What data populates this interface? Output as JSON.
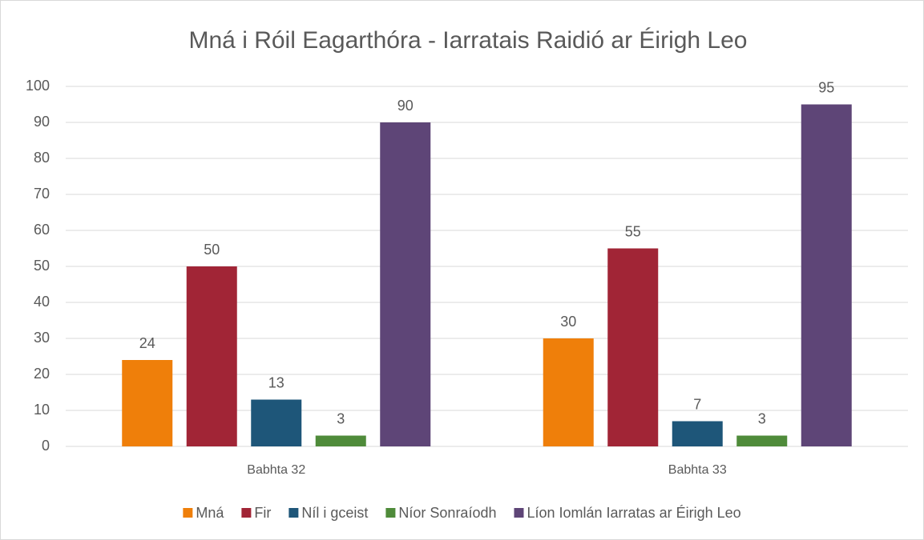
{
  "chart_data": {
    "type": "bar",
    "title": "Mná i Róil Eagarthóra - Iarratais Raidió ar Éirigh Leo",
    "categories": [
      "Babhta 32",
      "Babhta 33"
    ],
    "series": [
      {
        "name": "Mná",
        "color": "#ef7f0a",
        "values": [
          24,
          30
        ]
      },
      {
        "name": "Fir",
        "color": "#a12536",
        "values": [
          50,
          55
        ]
      },
      {
        "name": "Níl i gceist",
        "color": "#1e5679",
        "values": [
          13,
          7
        ]
      },
      {
        "name": "Níor Sonraíodh",
        "color": "#4f8b3a",
        "values": [
          3,
          3
        ]
      },
      {
        "name": "Líon Iomlán Iarratas ar Éirigh Leo",
        "color": "#5e4577",
        "values": [
          90,
          95
        ]
      }
    ],
    "ylim": [
      0,
      100
    ],
    "yticks": [
      0,
      10,
      20,
      30,
      40,
      50,
      60,
      70,
      80,
      90,
      100
    ],
    "grid": true,
    "legend": "bottom"
  }
}
